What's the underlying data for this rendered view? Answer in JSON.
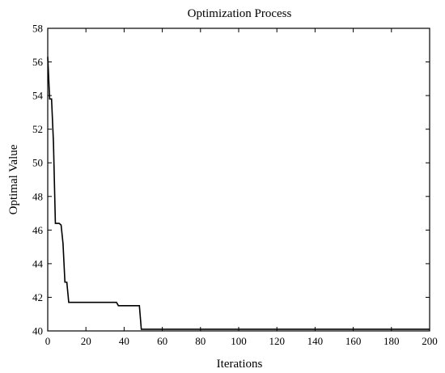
{
  "chart_data": {
    "type": "line",
    "title": "Optimization Process",
    "xlabel": "Iterations",
    "ylabel": "Optimal Value",
    "xlim": [
      0,
      200
    ],
    "ylim": [
      40,
      58
    ],
    "xticks": [
      0,
      20,
      40,
      60,
      80,
      100,
      120,
      140,
      160,
      180,
      200
    ],
    "yticks": [
      40,
      42,
      44,
      46,
      48,
      50,
      52,
      54,
      56,
      58
    ],
    "grid": false,
    "legend": "none",
    "line_color": "#000000",
    "series": [
      {
        "x": [
          0,
          1,
          2,
          3,
          4,
          5,
          6,
          7,
          8,
          9,
          10,
          11,
          36,
          37,
          48,
          49,
          50,
          200
        ],
        "values": [
          56.3,
          53.8,
          53.8,
          51.2,
          46.4,
          46.4,
          46.4,
          46.3,
          45.2,
          42.9,
          42.9,
          41.7,
          41.7,
          41.5,
          41.5,
          40.1,
          40.1,
          40.1
        ]
      }
    ]
  }
}
